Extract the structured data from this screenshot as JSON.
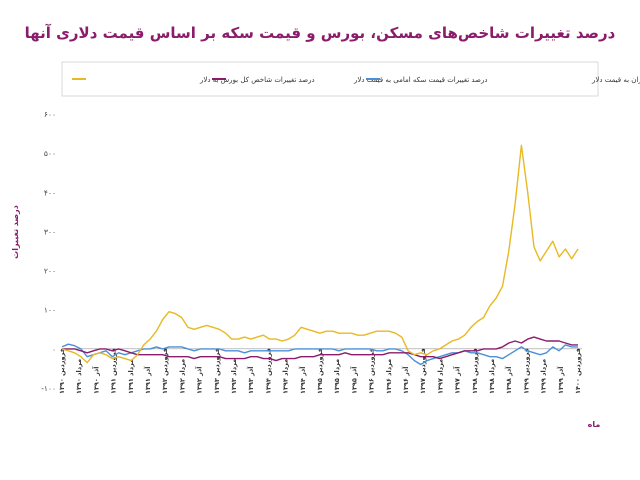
{
  "chart_data": {
    "type": "line",
    "title": "درصد تغییرات شاخص‌های مسکن، بورس و قیمت سکه بر اساس قیمت دلاری آنها",
    "ylabel": "درصد تغییرات",
    "xlabel": "ماه",
    "ylim": [
      -100,
      600
    ],
    "yticks": [
      "۶۰۰",
      "۵۰۰",
      "۴۰۰",
      "۳۰۰",
      "۲۰۰",
      "۱۰۰",
      "۰",
      "-۱۰۰"
    ],
    "ytick_values": [
      600,
      500,
      400,
      300,
      200,
      100,
      0,
      -100
    ],
    "legend_position": "top",
    "grid": false,
    "x_tick_labels": [
      "فروردین ۱۳۹۰",
      "مرداد ۱۳۹۰",
      "آذر ۱۳۹۰",
      "فروردین ۱۳۹۱",
      "مرداد ۱۳۹۱",
      "آذر ۱۳۹۱",
      "فروردین ۱۳۹۲",
      "مرداد ۱۳۹۲",
      "آذر ۱۳۹۲",
      "فروردین ۱۳۹۳",
      "مرداد ۱۳۹۳",
      "آذر ۱۳۹۳",
      "فروردین ۱۳۹۴",
      "مرداد ۱۳۹۴",
      "آذر ۱۳۹۴",
      "فروردین ۱۳۹۵",
      "مرداد ۱۳۹۵",
      "آذر ۱۳۹۵",
      "فروردین ۱۳۹۶",
      "مرداد ۱۳۹۶",
      "آذر ۱۳۹۶",
      "فروردین ۱۳۹۷",
      "مرداد ۱۳۹۷",
      "آذر ۱۳۹۷",
      "فروردین ۱۳۹۸",
      "مرداد ۱۳۹۸",
      "آذر ۱۳۹۸",
      "فروردین ۱۳۹۹",
      "مرداد ۱۳۹۹",
      "آذر ۱۳۹۹",
      "فروردین ۱۴۰۰"
    ],
    "series": [
      {
        "name": "درصد تغییرات شاخص کل بورس به دلار",
        "color": "#e8b923",
        "values": [
          0,
          -5,
          -10,
          -20,
          -35,
          -15,
          -10,
          -15,
          -25,
          -20,
          -25,
          -30,
          -15,
          10,
          25,
          45,
          75,
          95,
          90,
          80,
          55,
          50,
          55,
          60,
          55,
          50,
          40,
          25,
          25,
          30,
          25,
          30,
          35,
          25,
          25,
          20,
          25,
          35,
          55,
          50,
          45,
          40,
          45,
          45,
          40,
          40,
          40,
          35,
          35,
          40,
          45,
          45,
          45,
          40,
          30,
          -5,
          -15,
          -10,
          -15,
          -5,
          0,
          10,
          20,
          25,
          35,
          55,
          70,
          80,
          110,
          130,
          160,
          250,
          370,
          520,
          400,
          260,
          225,
          250,
          275,
          235,
          255,
          230,
          255
        ]
      },
      {
        "name": "درصد تغییرات قیمت سکه امامی به قیمت دلار",
        "color": "#8a1c6b",
        "values": [
          0,
          0,
          0,
          -5,
          -10,
          -5,
          0,
          0,
          -5,
          0,
          -5,
          -10,
          -15,
          -15,
          -15,
          -15,
          -15,
          -20,
          -20,
          -20,
          -20,
          -25,
          -20,
          -20,
          -20,
          -20,
          -25,
          -25,
          -25,
          -25,
          -20,
          -20,
          -25,
          -25,
          -30,
          -25,
          -25,
          -25,
          -20,
          -20,
          -20,
          -15,
          -15,
          -15,
          -15,
          -10,
          -15,
          -15,
          -15,
          -15,
          -15,
          -15,
          -10,
          -10,
          -10,
          -10,
          -15,
          -20,
          -20,
          -20,
          -25,
          -20,
          -15,
          -10,
          -5,
          -5,
          -5,
          0,
          0,
          0,
          5,
          15,
          20,
          15,
          25,
          30,
          25,
          20,
          20,
          20,
          15,
          10,
          10
        ]
      },
      {
        "name": "درصد تغییرات شاخص قیمت متر مربع مسکن در تهران به قیمت دلار",
        "color": "#4a90d9",
        "values": [
          5,
          12,
          8,
          0,
          -20,
          -15,
          -10,
          -5,
          -20,
          -10,
          -15,
          -10,
          -5,
          0,
          0,
          5,
          0,
          5,
          5,
          5,
          0,
          -5,
          0,
          0,
          0,
          0,
          -5,
          -5,
          -5,
          -10,
          -5,
          -5,
          -5,
          -5,
          -5,
          -5,
          -5,
          0,
          0,
          0,
          0,
          0,
          0,
          0,
          -5,
          0,
          0,
          0,
          0,
          0,
          -5,
          -5,
          0,
          0,
          -5,
          -15,
          -30,
          -40,
          -30,
          -25,
          -20,
          -15,
          -10,
          -10,
          -5,
          -10,
          -10,
          -15,
          -20,
          -20,
          -25,
          -15,
          -5,
          5,
          -5,
          -10,
          -15,
          -10,
          5,
          -5,
          10,
          5,
          5
        ]
      }
    ]
  }
}
